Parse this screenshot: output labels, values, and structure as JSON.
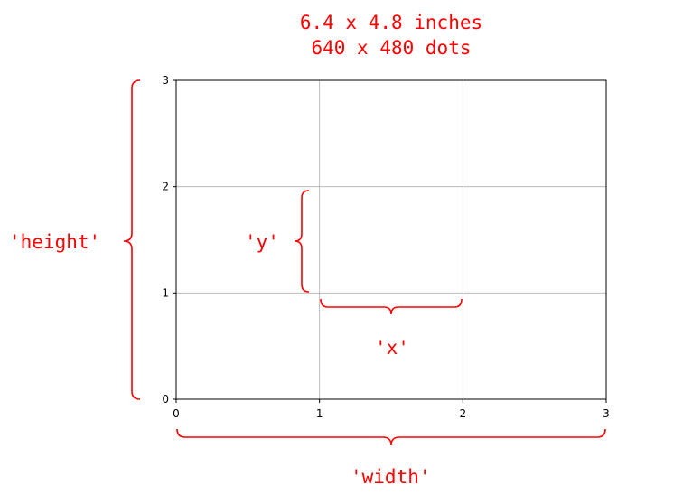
{
  "title": {
    "line1": "6.4 x 4.8 inches",
    "line2": "640 x 480 dots"
  },
  "accent_color": "#ff0000",
  "chart_data": {
    "type": "scatter",
    "x_ticks": [
      0,
      1,
      2,
      3
    ],
    "y_ticks": [
      0,
      1,
      2,
      3
    ],
    "xlim": [
      0,
      3
    ],
    "ylim": [
      0,
      3
    ],
    "grid": true
  },
  "annotations": {
    "height": "'height'",
    "width": "'width'",
    "x": "'x'",
    "y": "'y'"
  }
}
